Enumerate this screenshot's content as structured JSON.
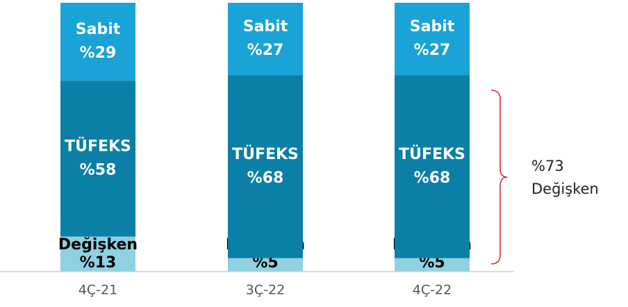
{
  "chart_data": {
    "type": "stacked_bar",
    "categories": [
      "4Ç-21",
      "3Ç-22",
      "4Ç-22"
    ],
    "series": [
      {
        "name": "Değişken",
        "color": "#8fd1e1",
        "values": [
          13,
          5,
          5
        ],
        "value_labels": [
          "%13",
          "%5",
          "%5"
        ]
      },
      {
        "name": "TÜFEKS",
        "color": "#0b7fa6",
        "values": [
          58,
          68,
          68
        ],
        "value_labels": [
          "%58",
          "%68",
          "%68"
        ]
      },
      {
        "name": "Sabit",
        "color": "#19a3d6",
        "values": [
          29,
          27,
          27
        ],
        "value_labels": [
          "%29",
          "%27",
          "%27"
        ]
      }
    ],
    "ylim": [
      0,
      100
    ],
    "annotation": [
      "%73",
      "Değişken"
    ]
  }
}
